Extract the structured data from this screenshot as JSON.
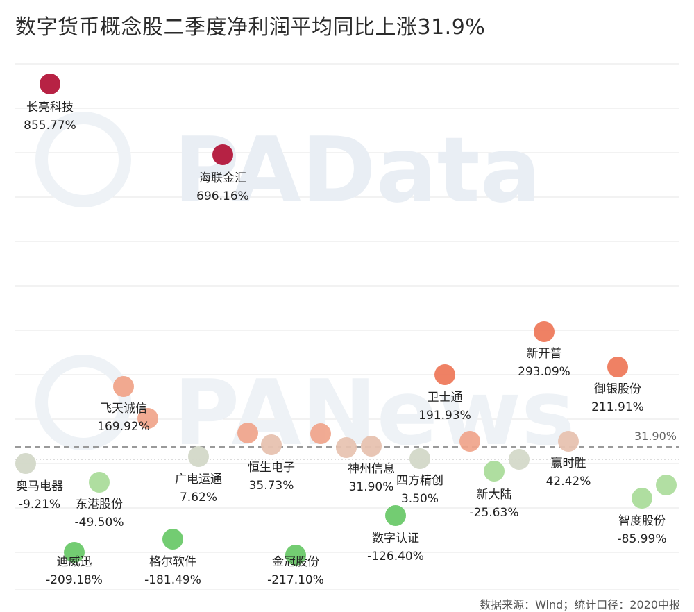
{
  "title": "数字货币概念股二季度净利润平均同比上涨31.9%",
  "source": "数据来源：Wind；统计口径：2020中报",
  "watermarks": [
    "PAData",
    "PANews"
  ],
  "colors": {
    "dark_red": "#b3163a",
    "coral": "#ee7a5c",
    "light_coral": "#f0a48a",
    "beige": "#e7c2b0",
    "neutral": "#d3d8c8",
    "light_green": "#abdc9b",
    "green": "#6cc96a",
    "grid": "#e6e6e6",
    "avg_line": "#9a9a9a"
  },
  "chart_data": {
    "type": "scatter",
    "title": "数字货币概念股二季度净利润平均同比上涨31.9%",
    "unit": "%",
    "reference_line": {
      "value": 31.9,
      "label": "31.90%"
    },
    "grid": true,
    "points": [
      {
        "name": "长亮科技",
        "value": 855.77,
        "label": "855.77%",
        "color": "dark_red"
      },
      {
        "name": "海联金汇",
        "value": 696.16,
        "label": "696.16%",
        "color": "dark_red"
      },
      {
        "name": "飞天诚信",
        "value": 169.92,
        "label": "169.92%",
        "color": "light_coral"
      },
      {
        "name": "奥马电器",
        "value": -9.21,
        "label": "-9.21%",
        "color": "neutral"
      },
      {
        "name": "东港股份",
        "value": -49.5,
        "label": "-49.50%",
        "color": "light_green"
      },
      {
        "name": "迪威迅",
        "value": -209.18,
        "label": "-209.18%",
        "color": "green"
      },
      {
        "name": "格尔软件",
        "value": -181.49,
        "label": "-181.49%",
        "color": "green"
      },
      {
        "name": "广电运通",
        "value": 7.62,
        "label": "7.62%",
        "color": "neutral"
      },
      {
        "name": "恒生电子",
        "value": 35.73,
        "label": "35.73%",
        "color": "beige"
      },
      {
        "name": "金冠股份",
        "value": -217.1,
        "label": "-217.10%",
        "color": "green"
      },
      {
        "name": "神州信息",
        "value": 31.9,
        "label": "31.90%",
        "color": "beige"
      },
      {
        "name": "四方精创",
        "value": 3.5,
        "label": "3.50%",
        "color": "neutral"
      },
      {
        "name": "数字认证",
        "value": -126.4,
        "label": "-126.40%",
        "color": "green"
      },
      {
        "name": "卫士通",
        "value": 191.93,
        "label": "191.93%",
        "color": "coral"
      },
      {
        "name": "新大陆",
        "value": -25.63,
        "label": "-25.63%",
        "color": "light_green"
      },
      {
        "name": "新开普",
        "value": 293.09,
        "label": "293.09%",
        "color": "coral"
      },
      {
        "name": "赢时胜",
        "value": 42.42,
        "label": "42.42%",
        "color": "beige"
      },
      {
        "name": "御银股份",
        "value": 211.91,
        "label": "211.91%",
        "color": "coral"
      },
      {
        "name": "智度股份",
        "value": -85.99,
        "label": "-85.99%",
        "color": "light_green"
      }
    ],
    "unlabeled_points": [
      {
        "value": 52,
        "color": "light_coral"
      },
      {
        "value": 60,
        "color": "light_coral"
      },
      {
        "value": 60,
        "color": "light_coral"
      },
      {
        "value": 30,
        "color": "beige"
      },
      {
        "value": 50,
        "color": "light_coral"
      },
      {
        "value": -3,
        "color": "neutral"
      },
      {
        "value": -45,
        "color": "light_green"
      }
    ]
  }
}
